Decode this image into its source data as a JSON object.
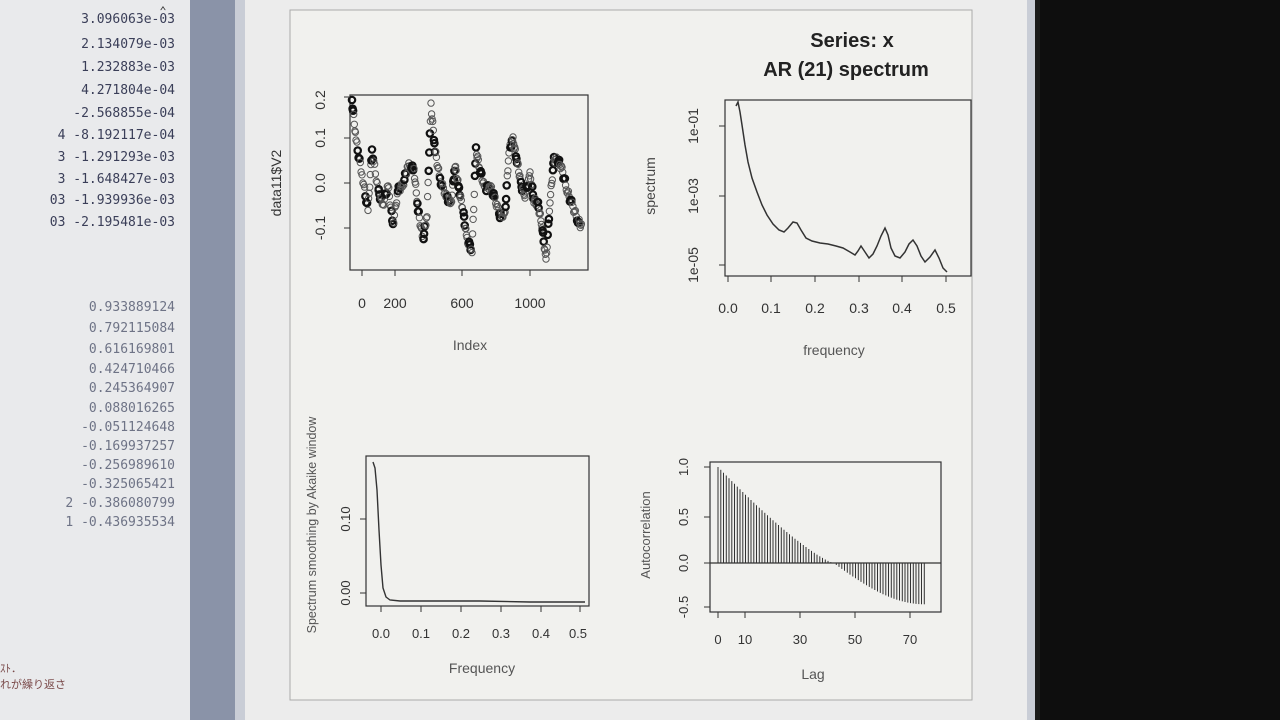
{
  "console": {
    "values_top": [
      "3.096063e-03",
      "2.134079e-03",
      "1.232883e-03",
      "4.271804e-04",
      "-2.568855e-04",
      "4 -8.192117e-04",
      "3 -1.291293e-03",
      "3 -1.648427e-03",
      "03 -1.939936e-03",
      "03 -2.195481e-03"
    ],
    "values_bottom": [
      "0.933889124",
      "0.792115084",
      "0.616169801",
      "0.424710466",
      "0.245364907",
      "0.088016265",
      "-0.051124648",
      "-0.169937257",
      "-0.256989610",
      "-0.325065421",
      "2 -0.386080799",
      "1 -0.436935534"
    ],
    "japanese_lines": [
      "ｽﾄ．",
      "れが繰り返さ"
    ]
  },
  "plots": {
    "index_plot": {
      "ylabel": "data11$V2",
      "xlabel": "Index",
      "xticks": [
        "0",
        "200",
        "600",
        "1000"
      ],
      "yticks": [
        "-0.1",
        "0.0",
        "0.1",
        "0.2"
      ]
    },
    "ar_spectrum": {
      "title_line1": "Series: x",
      "title_line2": "AR (21) spectrum",
      "ylabel": "spectrum",
      "xlabel": "frequency",
      "xticks": [
        "0.0",
        "0.1",
        "0.2",
        "0.3",
        "0.4",
        "0.5"
      ],
      "yticks": [
        "1e-05",
        "1e-03",
        "1e-01"
      ]
    },
    "smoothing": {
      "ylabel": "Spectrum smoothing by Akaike window",
      "xlabel": "Frequency",
      "xticks": [
        "0.0",
        "0.1",
        "0.2",
        "0.3",
        "0.4",
        "0.5"
      ],
      "yticks": [
        "0.00",
        "0.10"
      ]
    },
    "acf": {
      "ylabel": "Autocorrelation",
      "xlabel": "Lag",
      "xticks": [
        "0",
        "10",
        "30",
        "50",
        "70"
      ],
      "yticks": [
        "-0.5",
        "0.0",
        "0.5",
        "1.0"
      ]
    }
  },
  "colors": {
    "plot_background": "#f1f1ee",
    "ink": "#2a2a2a",
    "console_text": "#3a3e58"
  },
  "icons": {
    "scroll_up": "chevron-up-icon"
  }
}
